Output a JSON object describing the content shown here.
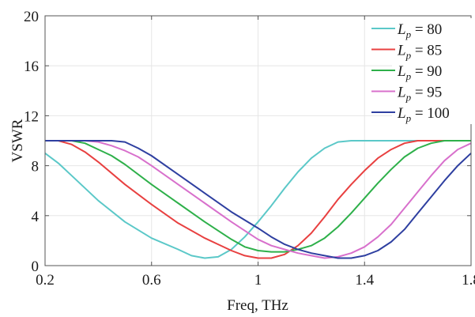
{
  "chart_data": {
    "type": "line",
    "xlabel": "Freq, THz",
    "ylabel": "VSWR",
    "xlim": [
      0.2,
      1.8
    ],
    "ylim": [
      0,
      20
    ],
    "xticks": [
      0.2,
      0.6,
      1.0,
      1.4,
      1.8
    ],
    "xtick_labels": [
      "0.2",
      "0.6",
      "1",
      "1.4",
      "1.8"
    ],
    "yticks": [
      0,
      4,
      8,
      12,
      16,
      20
    ],
    "ytick_labels": [
      "0",
      "4",
      "8",
      "12",
      "16",
      "20"
    ],
    "grid": true,
    "legend_position": "top-right",
    "legend_symbol": "L",
    "legend_subscript": "p",
    "series": [
      {
        "name": "80",
        "color": "#5bc8c8",
        "points": [
          [
            0.2,
            9.0
          ],
          [
            0.25,
            8.2
          ],
          [
            0.3,
            7.2
          ],
          [
            0.4,
            5.2
          ],
          [
            0.5,
            3.5
          ],
          [
            0.6,
            2.2
          ],
          [
            0.7,
            1.3
          ],
          [
            0.75,
            0.8
          ],
          [
            0.8,
            0.6
          ],
          [
            0.85,
            0.7
          ],
          [
            0.9,
            1.3
          ],
          [
            0.95,
            2.3
          ],
          [
            1.0,
            3.5
          ],
          [
            1.05,
            4.8
          ],
          [
            1.1,
            6.2
          ],
          [
            1.15,
            7.5
          ],
          [
            1.2,
            8.6
          ],
          [
            1.25,
            9.4
          ],
          [
            1.3,
            9.9
          ],
          [
            1.35,
            10.0
          ],
          [
            1.4,
            10.0
          ],
          [
            1.5,
            10.0
          ],
          [
            1.6,
            10.0
          ],
          [
            1.7,
            10.0
          ],
          [
            1.8,
            10.0
          ]
        ]
      },
      {
        "name": "85",
        "color": "#e84040",
        "points": [
          [
            0.2,
            10.0
          ],
          [
            0.25,
            10.0
          ],
          [
            0.3,
            9.7
          ],
          [
            0.35,
            9.1
          ],
          [
            0.4,
            8.3
          ],
          [
            0.5,
            6.5
          ],
          [
            0.6,
            4.9
          ],
          [
            0.7,
            3.4
          ],
          [
            0.8,
            2.2
          ],
          [
            0.85,
            1.7
          ],
          [
            0.9,
            1.2
          ],
          [
            0.95,
            0.8
          ],
          [
            1.0,
            0.6
          ],
          [
            1.05,
            0.6
          ],
          [
            1.1,
            0.9
          ],
          [
            1.15,
            1.6
          ],
          [
            1.2,
            2.6
          ],
          [
            1.25,
            3.9
          ],
          [
            1.3,
            5.3
          ],
          [
            1.35,
            6.5
          ],
          [
            1.4,
            7.6
          ],
          [
            1.45,
            8.6
          ],
          [
            1.5,
            9.3
          ],
          [
            1.55,
            9.8
          ],
          [
            1.6,
            10.0
          ],
          [
            1.7,
            10.0
          ],
          [
            1.8,
            10.0
          ]
        ]
      },
      {
        "name": "90",
        "color": "#2eb04a",
        "points": [
          [
            0.2,
            10.0
          ],
          [
            0.3,
            10.0
          ],
          [
            0.35,
            9.8
          ],
          [
            0.4,
            9.3
          ],
          [
            0.45,
            8.8
          ],
          [
            0.5,
            8.1
          ],
          [
            0.6,
            6.5
          ],
          [
            0.7,
            5.0
          ],
          [
            0.8,
            3.5
          ],
          [
            0.85,
            2.8
          ],
          [
            0.9,
            2.1
          ],
          [
            0.95,
            1.5
          ],
          [
            1.0,
            1.2
          ],
          [
            1.05,
            1.1
          ],
          [
            1.1,
            1.1
          ],
          [
            1.15,
            1.3
          ],
          [
            1.2,
            1.6
          ],
          [
            1.25,
            2.2
          ],
          [
            1.3,
            3.1
          ],
          [
            1.35,
            4.2
          ],
          [
            1.4,
            5.4
          ],
          [
            1.45,
            6.6
          ],
          [
            1.5,
            7.7
          ],
          [
            1.55,
            8.7
          ],
          [
            1.6,
            9.4
          ],
          [
            1.65,
            9.8
          ],
          [
            1.7,
            10.0
          ],
          [
            1.8,
            10.0
          ]
        ]
      },
      {
        "name": "95",
        "color": "#d870cc",
        "points": [
          [
            0.2,
            10.0
          ],
          [
            0.35,
            10.0
          ],
          [
            0.4,
            9.9
          ],
          [
            0.45,
            9.6
          ],
          [
            0.5,
            9.2
          ],
          [
            0.55,
            8.7
          ],
          [
            0.6,
            8.0
          ],
          [
            0.7,
            6.5
          ],
          [
            0.8,
            5.0
          ],
          [
            0.9,
            3.5
          ],
          [
            0.95,
            2.8
          ],
          [
            1.0,
            2.1
          ],
          [
            1.05,
            1.6
          ],
          [
            1.1,
            1.3
          ],
          [
            1.15,
            1.0
          ],
          [
            1.2,
            0.8
          ],
          [
            1.25,
            0.6
          ],
          [
            1.3,
            0.7
          ],
          [
            1.35,
            1.0
          ],
          [
            1.4,
            1.5
          ],
          [
            1.45,
            2.3
          ],
          [
            1.5,
            3.3
          ],
          [
            1.55,
            4.6
          ],
          [
            1.6,
            5.9
          ],
          [
            1.65,
            7.2
          ],
          [
            1.7,
            8.4
          ],
          [
            1.75,
            9.3
          ],
          [
            1.8,
            9.8
          ]
        ]
      },
      {
        "name": "100",
        "color": "#2e3fa0",
        "points": [
          [
            0.2,
            10.0
          ],
          [
            0.4,
            10.0
          ],
          [
            0.45,
            10.0
          ],
          [
            0.5,
            9.9
          ],
          [
            0.55,
            9.4
          ],
          [
            0.6,
            8.8
          ],
          [
            0.7,
            7.3
          ],
          [
            0.8,
            5.8
          ],
          [
            0.9,
            4.3
          ],
          [
            1.0,
            3.0
          ],
          [
            1.05,
            2.3
          ],
          [
            1.1,
            1.7
          ],
          [
            1.15,
            1.3
          ],
          [
            1.2,
            1.0
          ],
          [
            1.25,
            0.8
          ],
          [
            1.3,
            0.6
          ],
          [
            1.35,
            0.6
          ],
          [
            1.4,
            0.8
          ],
          [
            1.45,
            1.2
          ],
          [
            1.5,
            1.9
          ],
          [
            1.55,
            2.9
          ],
          [
            1.6,
            4.2
          ],
          [
            1.65,
            5.5
          ],
          [
            1.7,
            6.8
          ],
          [
            1.75,
            8.0
          ],
          [
            1.8,
            9.0
          ]
        ]
      }
    ]
  }
}
